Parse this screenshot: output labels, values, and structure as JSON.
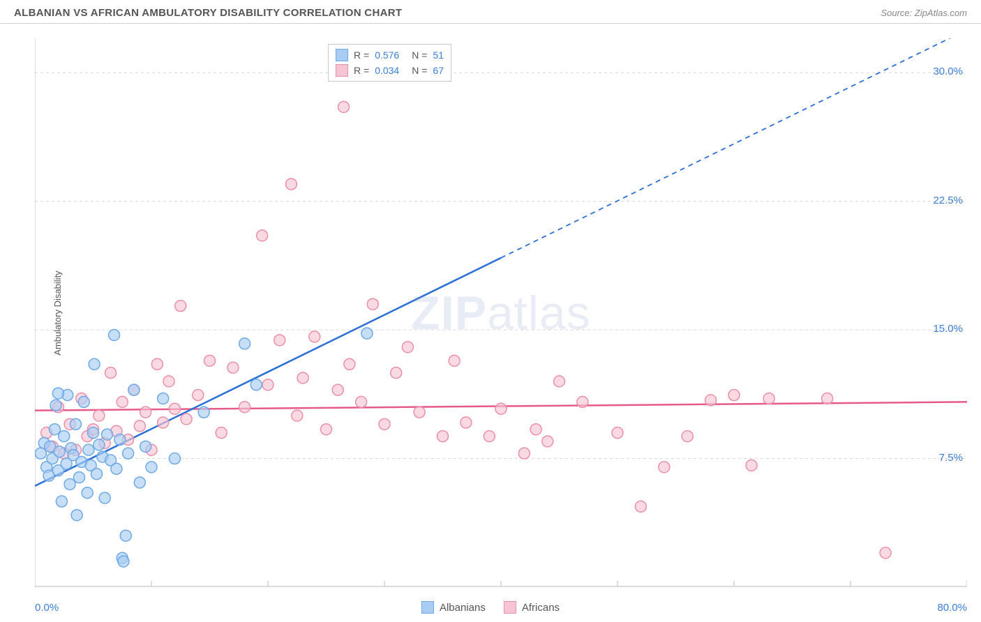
{
  "header": {
    "title": "ALBANIAN VS AFRICAN AMBULATORY DISABILITY CORRELATION CHART",
    "source_prefix": "Source: ",
    "source": "ZipAtlas.com"
  },
  "watermark": {
    "left": "ZIP",
    "right": "atlas"
  },
  "y_axis": {
    "label": "Ambulatory Disability"
  },
  "chart": {
    "type": "scatter",
    "xlim": [
      0,
      80
    ],
    "ylim": [
      0,
      32
    ],
    "x_ticks": [
      0,
      10,
      20,
      30,
      40,
      50,
      60,
      70,
      80
    ],
    "y_ticks": [
      7.5,
      15.0,
      22.5,
      30.0
    ],
    "x_tick_labels": {
      "min": "0.0%",
      "max": "80.0%"
    },
    "y_tick_labels": [
      "7.5%",
      "15.0%",
      "22.5%",
      "30.0%"
    ],
    "grid_color": "#d8d8d8",
    "axis_color": "#bbbbbb",
    "background_color": "#ffffff",
    "marker_radius": 8,
    "marker_stroke_width": 1.5,
    "line_width": 2.5
  },
  "series": [
    {
      "key": "albanians",
      "label": "Albanians",
      "R": "0.576",
      "N": "51",
      "fill": "#a9cdf2",
      "stroke": "#6da9e6",
      "line_color": "#2a6fd6",
      "trend": {
        "x1": 0,
        "y1": 5.9,
        "x2": 40,
        "y2": 19.2,
        "x2_dash": 80,
        "y2_dash": 32.5
      },
      "points": [
        [
          0.5,
          7.8
        ],
        [
          0.8,
          8.4
        ],
        [
          1.0,
          7.0
        ],
        [
          1.2,
          6.5
        ],
        [
          1.3,
          8.2
        ],
        [
          1.5,
          7.5
        ],
        [
          1.7,
          9.2
        ],
        [
          1.8,
          10.6
        ],
        [
          2.0,
          6.8
        ],
        [
          2.1,
          7.9
        ],
        [
          2.3,
          5.0
        ],
        [
          2.5,
          8.8
        ],
        [
          2.7,
          7.2
        ],
        [
          2.8,
          11.2
        ],
        [
          3.0,
          6.0
        ],
        [
          3.1,
          8.1
        ],
        [
          3.3,
          7.7
        ],
        [
          3.5,
          9.5
        ],
        [
          3.6,
          4.2
        ],
        [
          3.8,
          6.4
        ],
        [
          4.0,
          7.3
        ],
        [
          4.2,
          10.8
        ],
        [
          4.5,
          5.5
        ],
        [
          4.6,
          8.0
        ],
        [
          4.8,
          7.1
        ],
        [
          5.0,
          9.0
        ],
        [
          5.1,
          13.0
        ],
        [
          5.3,
          6.6
        ],
        [
          5.5,
          8.3
        ],
        [
          5.8,
          7.6
        ],
        [
          6.0,
          5.2
        ],
        [
          6.2,
          8.9
        ],
        [
          6.5,
          7.4
        ],
        [
          6.8,
          14.7
        ],
        [
          7.0,
          6.9
        ],
        [
          7.3,
          8.6
        ],
        [
          7.5,
          1.7
        ],
        [
          7.6,
          1.5
        ],
        [
          7.8,
          3.0
        ],
        [
          8.0,
          7.8
        ],
        [
          8.5,
          11.5
        ],
        [
          9.0,
          6.1
        ],
        [
          9.5,
          8.2
        ],
        [
          10.0,
          7.0
        ],
        [
          11.0,
          11.0
        ],
        [
          12.0,
          7.5
        ],
        [
          14.5,
          10.2
        ],
        [
          18.0,
          14.2
        ],
        [
          19.0,
          11.8
        ],
        [
          28.5,
          14.8
        ],
        [
          2.0,
          11.3
        ]
      ]
    },
    {
      "key": "africans",
      "label": "Africans",
      "R": "0.034",
      "N": "67",
      "fill": "#f6c5d3",
      "stroke": "#eb8fa9",
      "line_color": "#e65a8a",
      "trend": {
        "x1": 0,
        "y1": 10.3,
        "x2": 80,
        "y2": 10.8
      },
      "points": [
        [
          1.0,
          9.0
        ],
        [
          1.5,
          8.2
        ],
        [
          2.0,
          10.5
        ],
        [
          2.5,
          7.8
        ],
        [
          3.0,
          9.5
        ],
        [
          3.5,
          8.0
        ],
        [
          4.0,
          11.0
        ],
        [
          4.5,
          8.8
        ],
        [
          5.0,
          9.2
        ],
        [
          5.5,
          10.0
        ],
        [
          6.0,
          8.4
        ],
        [
          6.5,
          12.5
        ],
        [
          7.0,
          9.1
        ],
        [
          7.5,
          10.8
        ],
        [
          8.0,
          8.6
        ],
        [
          8.5,
          11.5
        ],
        [
          9.0,
          9.4
        ],
        [
          9.5,
          10.2
        ],
        [
          10.0,
          8.0
        ],
        [
          10.5,
          13.0
        ],
        [
          11.0,
          9.6
        ],
        [
          11.5,
          12.0
        ],
        [
          12.0,
          10.4
        ],
        [
          12.5,
          16.4
        ],
        [
          13.0,
          9.8
        ],
        [
          14.0,
          11.2
        ],
        [
          15.0,
          13.2
        ],
        [
          16.0,
          9.0
        ],
        [
          17.0,
          12.8
        ],
        [
          18.0,
          10.5
        ],
        [
          19.5,
          20.5
        ],
        [
          20.0,
          11.8
        ],
        [
          21.0,
          14.4
        ],
        [
          22.0,
          23.5
        ],
        [
          22.5,
          10.0
        ],
        [
          23.0,
          12.2
        ],
        [
          24.0,
          14.6
        ],
        [
          25.0,
          9.2
        ],
        [
          26.0,
          11.5
        ],
        [
          26.5,
          28.0
        ],
        [
          27.0,
          13.0
        ],
        [
          28.0,
          10.8
        ],
        [
          29.0,
          16.5
        ],
        [
          30.0,
          9.5
        ],
        [
          31.0,
          12.5
        ],
        [
          32.0,
          14.0
        ],
        [
          33.0,
          10.2
        ],
        [
          35.0,
          8.8
        ],
        [
          36.0,
          13.2
        ],
        [
          37.0,
          9.6
        ],
        [
          39.0,
          8.8
        ],
        [
          40.0,
          10.4
        ],
        [
          42.0,
          7.8
        ],
        [
          43.0,
          9.2
        ],
        [
          45.0,
          12.0
        ],
        [
          47.0,
          10.8
        ],
        [
          50.0,
          9.0
        ],
        [
          52.0,
          4.7
        ],
        [
          54.0,
          7.0
        ],
        [
          56.0,
          8.8
        ],
        [
          58.0,
          10.9
        ],
        [
          60.0,
          11.2
        ],
        [
          61.5,
          7.1
        ],
        [
          63.0,
          11.0
        ],
        [
          68.0,
          11.0
        ],
        [
          73.0,
          2.0
        ],
        [
          44.0,
          8.5
        ]
      ]
    }
  ],
  "legend_top": {
    "R_label": "R  =",
    "N_label": "N  ="
  },
  "legend_bottom": {
    "items": [
      "Albanians",
      "Africans"
    ]
  }
}
